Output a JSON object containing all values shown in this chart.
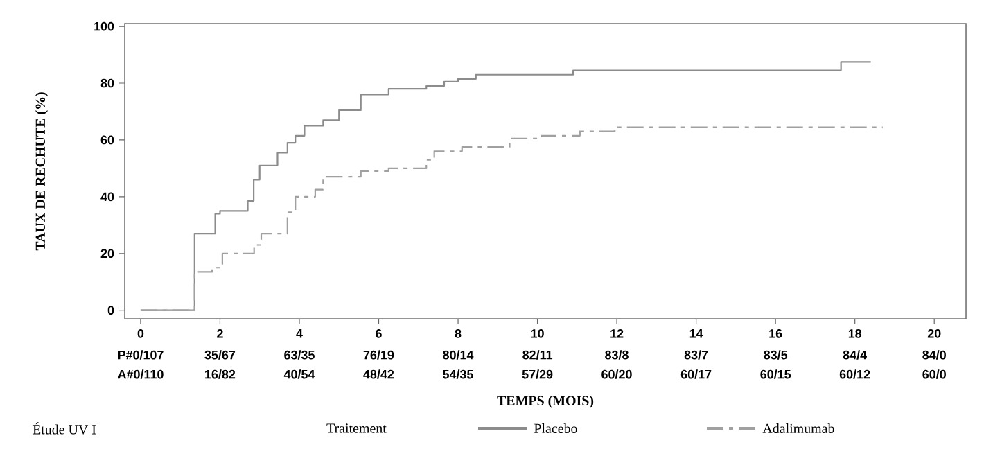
{
  "chart_data": {
    "type": "step",
    "xlabel": "TEMPS (MOIS)",
    "ylabel": "TAUX DE RECHUTE (%)",
    "xlim": [
      -0.4,
      20.8
    ],
    "ylim": [
      -3,
      101
    ],
    "xticks": [
      0,
      2,
      4,
      6,
      8,
      10,
      12,
      14,
      16,
      18,
      20
    ],
    "yticks": [
      0,
      20,
      40,
      60,
      80,
      100
    ],
    "legend": "bottom",
    "legend_title": "Traitement",
    "series": [
      {
        "name": "Placebo",
        "color": "#8c8c8c",
        "line_style": "solid",
        "x": [
          0,
          1.36,
          1.88,
          2.0,
          2.7,
          2.85,
          3.0,
          3.45,
          3.7,
          3.9,
          4.13,
          4.6,
          5.0,
          5.55,
          6.25,
          7.2,
          7.65,
          8.0,
          8.45,
          10.9,
          17.65,
          18.4
        ],
        "values": [
          0,
          27,
          34,
          35,
          38.5,
          46,
          51,
          55.5,
          59,
          61.5,
          65,
          67,
          70.5,
          76,
          78,
          79,
          80.5,
          81.5,
          83,
          84.5,
          87.5,
          87.5
        ]
      },
      {
        "name": "Adalimumab",
        "color": "#a0a0a0",
        "line_style": "dashed",
        "x": [
          0,
          1.36,
          1.8,
          2.06,
          2.86,
          3.04,
          3.7,
          3.9,
          4.4,
          4.6,
          5.55,
          6.25,
          7.2,
          7.4,
          8.1,
          9.3,
          10.1,
          11.07,
          11.95,
          18.7
        ],
        "values": [
          0,
          13.5,
          15,
          20,
          23,
          27,
          34.5,
          40,
          42.5,
          47,
          49,
          50,
          53,
          56,
          57.5,
          60.5,
          61.5,
          63,
          64.5,
          64.5
        ]
      }
    ],
    "annotations": [
      "P#0/107",
      "35/67",
      "63/35",
      "76/19",
      "80/14",
      "82/11",
      "83/8",
      "83/7",
      "83/5",
      "84/4",
      "84/0",
      "A#0/110",
      "16/82",
      "40/54",
      "48/42",
      "54/35",
      "57/29",
      "60/20",
      "60/17",
      "60/15",
      "60/12",
      "60/0",
      "Étude UV I"
    ]
  }
}
